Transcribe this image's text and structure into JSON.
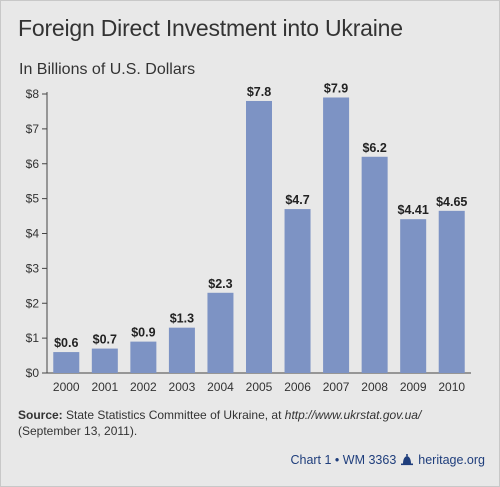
{
  "title": "Foreign Direct Investment into Ukraine",
  "subtitle": "In Billions of U.S. Dollars",
  "chart_data": {
    "type": "bar",
    "categories": [
      "2000",
      "2001",
      "2002",
      "2003",
      "2004",
      "2005",
      "2006",
      "2007",
      "2008",
      "2009",
      "2010"
    ],
    "values": [
      0.6,
      0.7,
      0.9,
      1.3,
      2.3,
      7.8,
      4.7,
      7.9,
      6.2,
      4.41,
      4.65
    ],
    "data_labels": [
      "$0.6",
      "$0.7",
      "$0.9",
      "$1.3",
      "$2.3",
      "$7.8",
      "$4.7",
      "$7.9",
      "$6.2",
      "$4.41",
      "$4.65"
    ],
    "y_ticks": [
      0,
      1,
      2,
      3,
      4,
      5,
      6,
      7,
      8
    ],
    "y_tick_labels": [
      "$0",
      "$1",
      "$2",
      "$3",
      "$4",
      "$5",
      "$6",
      "$7",
      "$8"
    ],
    "ylim": [
      0,
      8
    ],
    "grid": false,
    "bar_color": "#7d93c4",
    "title": "Foreign Direct Investment into Ukraine",
    "ylabel": "In Billions of U.S. Dollars",
    "xlabel": ""
  },
  "source": {
    "label": "Source:",
    "text": " State Statistics Committee of Ukraine, at ",
    "url": "http://www.ukrstat.gov.ua/",
    "date": "(September 13, 2011)."
  },
  "footer": {
    "chart_ref": "Chart 1 • WM 3363",
    "site": "heritage.org"
  },
  "colors": {
    "background": "#e8e8e8",
    "bar": "#7d93c4",
    "footer_text": "#1f3e7c"
  }
}
